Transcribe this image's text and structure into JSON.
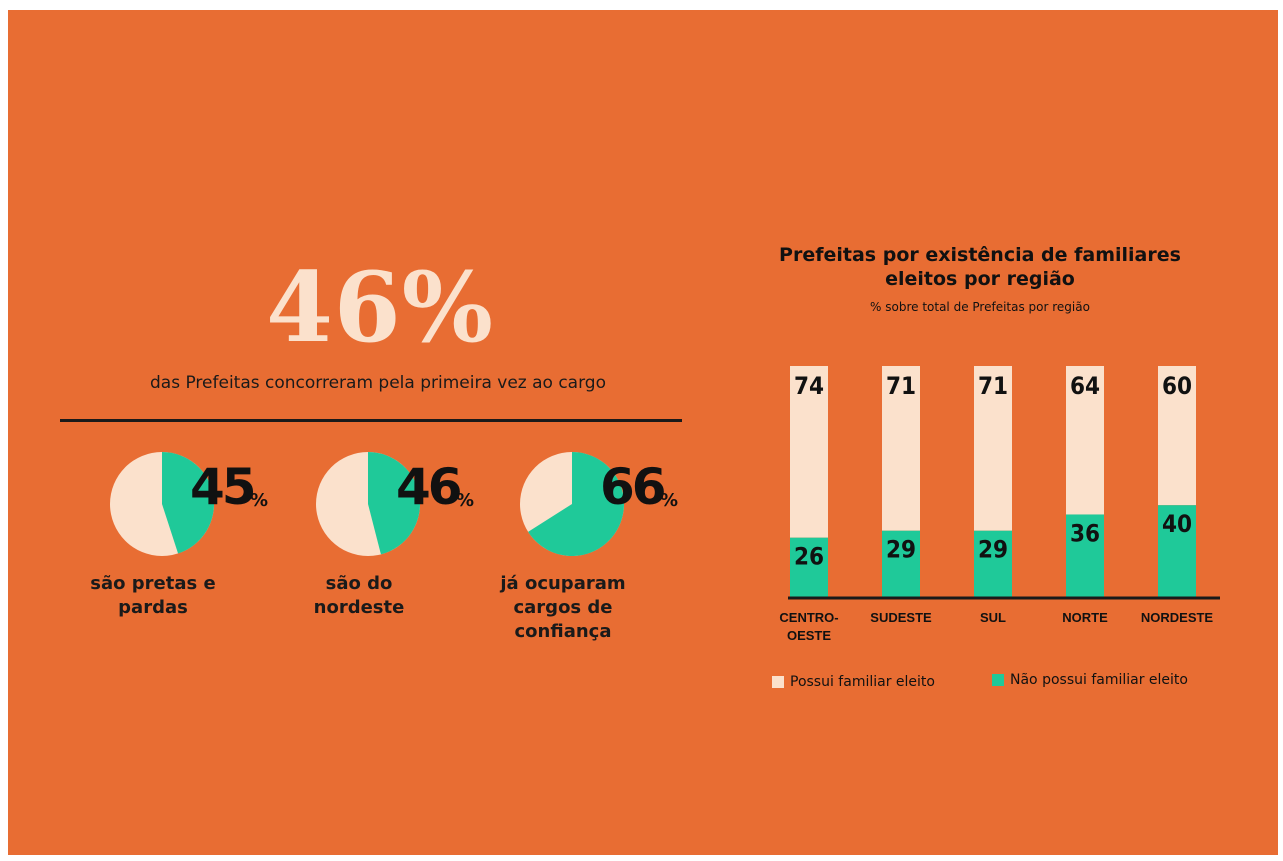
{
  "headline": {
    "value": "46%",
    "caption": "das Prefeitas concorreram pela primeira vez ao cargo"
  },
  "pies": [
    {
      "number": "45",
      "symbol": "%",
      "fraction": 0.45,
      "caption": [
        "são pretas e",
        "pardas"
      ]
    },
    {
      "number": "46",
      "symbol": "%",
      "fraction": 0.46,
      "caption": [
        "são do",
        "nordeste"
      ]
    },
    {
      "number": "66",
      "symbol": "%",
      "fraction": 0.66,
      "caption": [
        "já ocuparam",
        "cargos de",
        "confiança"
      ]
    }
  ],
  "colors": {
    "background": "#e86d33",
    "cream": "#fbe1cc",
    "green": "#1fc999",
    "text": "#111111"
  },
  "chart_data": {
    "type": "bar",
    "stacked": true,
    "title": "Prefeitas por existência de familiares eleitos por região",
    "subtitle": "% sobre total de Prefeitas por região",
    "categories": [
      [
        "CENTRO-",
        "OESTE"
      ],
      [
        "SUDESTE"
      ],
      [
        "SUL"
      ],
      [
        "NORTE"
      ],
      [
        "NORDESTE"
      ]
    ],
    "series": [
      {
        "name": "Não possui familiar eleito",
        "color": "#1fc999",
        "values": [
          26,
          29,
          29,
          36,
          40
        ]
      },
      {
        "name": "Possui familiar eleito",
        "color": "#fbe1cc",
        "values": [
          74,
          71,
          71,
          64,
          60
        ]
      }
    ],
    "legend": [
      "Possui familiar eleito",
      "Não possui familiar eleito"
    ],
    "ylim": [
      0,
      100
    ]
  }
}
